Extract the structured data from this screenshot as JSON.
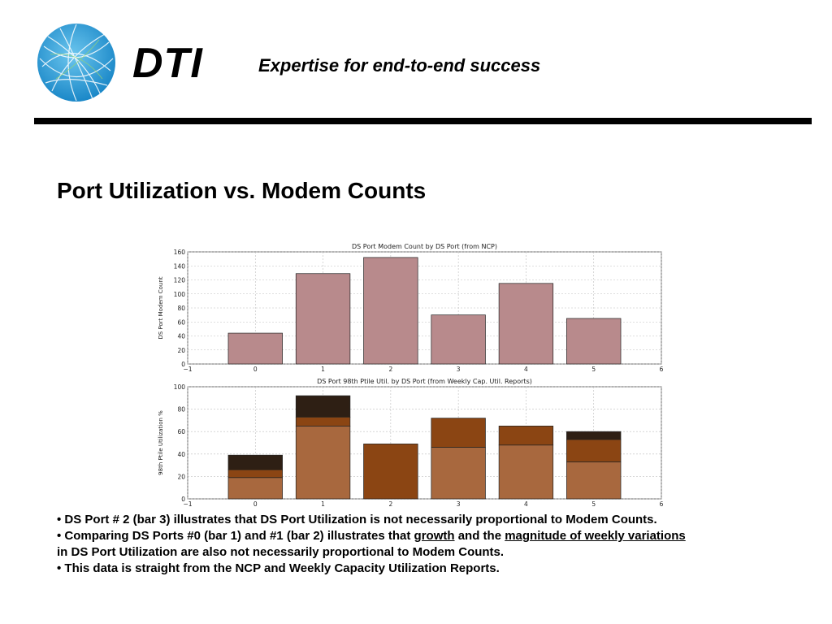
{
  "header": {
    "brand": "DTI",
    "tagline": "Expertise for end-to-end success",
    "logo_icon": "network-globe-icon",
    "accent_color": "#2a9fd6"
  },
  "slide": {
    "title": "Port Utilization vs. Modem Counts"
  },
  "chart_data": [
    {
      "type": "bar",
      "title": "DS Port Modem Count by DS Port (from NCP)",
      "xlabel": "",
      "ylabel": "DS Port Modem Count",
      "xlim": [
        -1,
        6
      ],
      "ylim": [
        0,
        160
      ],
      "x_ticks": [
        "−1",
        "0",
        "1",
        "2",
        "3",
        "4",
        "5",
        "6"
      ],
      "y_ticks": [
        "0",
        "20",
        "40",
        "60",
        "80",
        "100",
        "120",
        "140",
        "160"
      ],
      "categories": [
        "0",
        "1",
        "2",
        "3",
        "4",
        "5"
      ],
      "values": [
        44,
        129,
        152,
        70,
        115,
        65
      ],
      "grid": true,
      "bar_color": "#b88a8c"
    },
    {
      "type": "bar",
      "stacked": true,
      "title": "DS Port 98th Ptile Util. by DS Port (from Weekly Cap. Util. Reports)",
      "xlabel": "",
      "ylabel": "98th Ptile Utilization %",
      "xlim": [
        -1,
        6
      ],
      "ylim": [
        0,
        100
      ],
      "x_ticks": [
        "−1",
        "0",
        "1",
        "2",
        "3",
        "4",
        "5",
        "6"
      ],
      "y_ticks": [
        "0",
        "20",
        "40",
        "60",
        "80",
        "100"
      ],
      "categories": [
        "0",
        "1",
        "2",
        "3",
        "4",
        "5"
      ],
      "grid": true,
      "series": [
        {
          "color": "#a8683e",
          "values": [
            19,
            65,
            0,
            46,
            48,
            33
          ]
        },
        {
          "color": "#8b4513",
          "values": [
            7,
            8,
            49,
            26,
            17,
            20
          ]
        },
        {
          "color": "#2e1f14",
          "values": [
            13,
            19,
            0,
            0,
            0,
            7
          ]
        }
      ]
    }
  ],
  "notes": {
    "line1": "• DS Port # 2  (bar 3) illustrates that DS Port Utilization is not necessarily proportional to Modem Counts.",
    "line2_a": "• Comparing DS Ports #0 (bar 1) and #1 (bar 2) illustrates that ",
    "line2_growth": "growth",
    "line2_b": " and the ",
    "line2_mag": "magnitude of weekly variations",
    "line3": "in DS Port Utilization are also not necessarily proportional to Modem Counts.",
    "line4": "• This data is straight from the  NCP and Weekly Capacity Utilization Reports."
  }
}
